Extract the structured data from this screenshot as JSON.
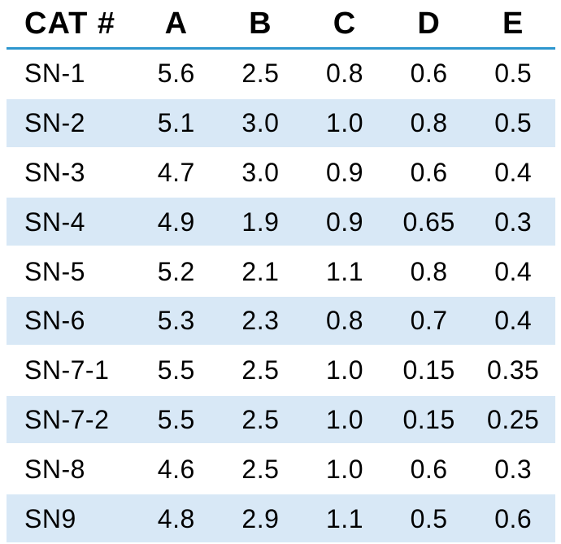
{
  "table": {
    "columns": [
      "CAT #",
      "A",
      "B",
      "C",
      "D",
      "E"
    ],
    "rows": [
      {
        "cat": "SN-1",
        "values": [
          "5.6",
          "2.5",
          "0.8",
          "0.6",
          "0.5"
        ],
        "shaded": false
      },
      {
        "cat": "SN-2",
        "values": [
          "5.1",
          "3.0",
          "1.0",
          "0.8",
          "0.5"
        ],
        "shaded": true
      },
      {
        "cat": "SN-3",
        "values": [
          "4.7",
          "3.0",
          "0.9",
          "0.6",
          "0.4"
        ],
        "shaded": false
      },
      {
        "cat": "SN-4",
        "values": [
          "4.9",
          "1.9",
          "0.9",
          "0.65",
          "0.3"
        ],
        "shaded": true
      },
      {
        "cat": "SN-5",
        "values": [
          "5.2",
          "2.1",
          "1.1",
          "0.8",
          "0.4"
        ],
        "shaded": false
      },
      {
        "cat": "SN-6",
        "values": [
          "5.3",
          "2.3",
          "0.8",
          "0.7",
          "0.4"
        ],
        "shaded": true
      },
      {
        "cat": "SN-7-1",
        "values": [
          "5.5",
          "2.5",
          "1.0",
          "0.15",
          "0.35"
        ],
        "shaded": false
      },
      {
        "cat": "SN-7-2",
        "values": [
          "5.5",
          "2.5",
          "1.0",
          "0.15",
          "0.25"
        ],
        "shaded": true
      },
      {
        "cat": "SN-8",
        "values": [
          "4.6",
          "2.5",
          "1.0",
          "0.6",
          "0.3"
        ],
        "shaded": false
      },
      {
        "cat": "SN9",
        "values": [
          "4.8",
          "2.9",
          "1.1",
          "0.5",
          "0.6"
        ],
        "shaded": true
      }
    ]
  },
  "colors": {
    "shaded_row_bg": "#d8e8f6",
    "header_divider": "#2d96ce",
    "text": "#000000",
    "background": "#ffffff"
  }
}
